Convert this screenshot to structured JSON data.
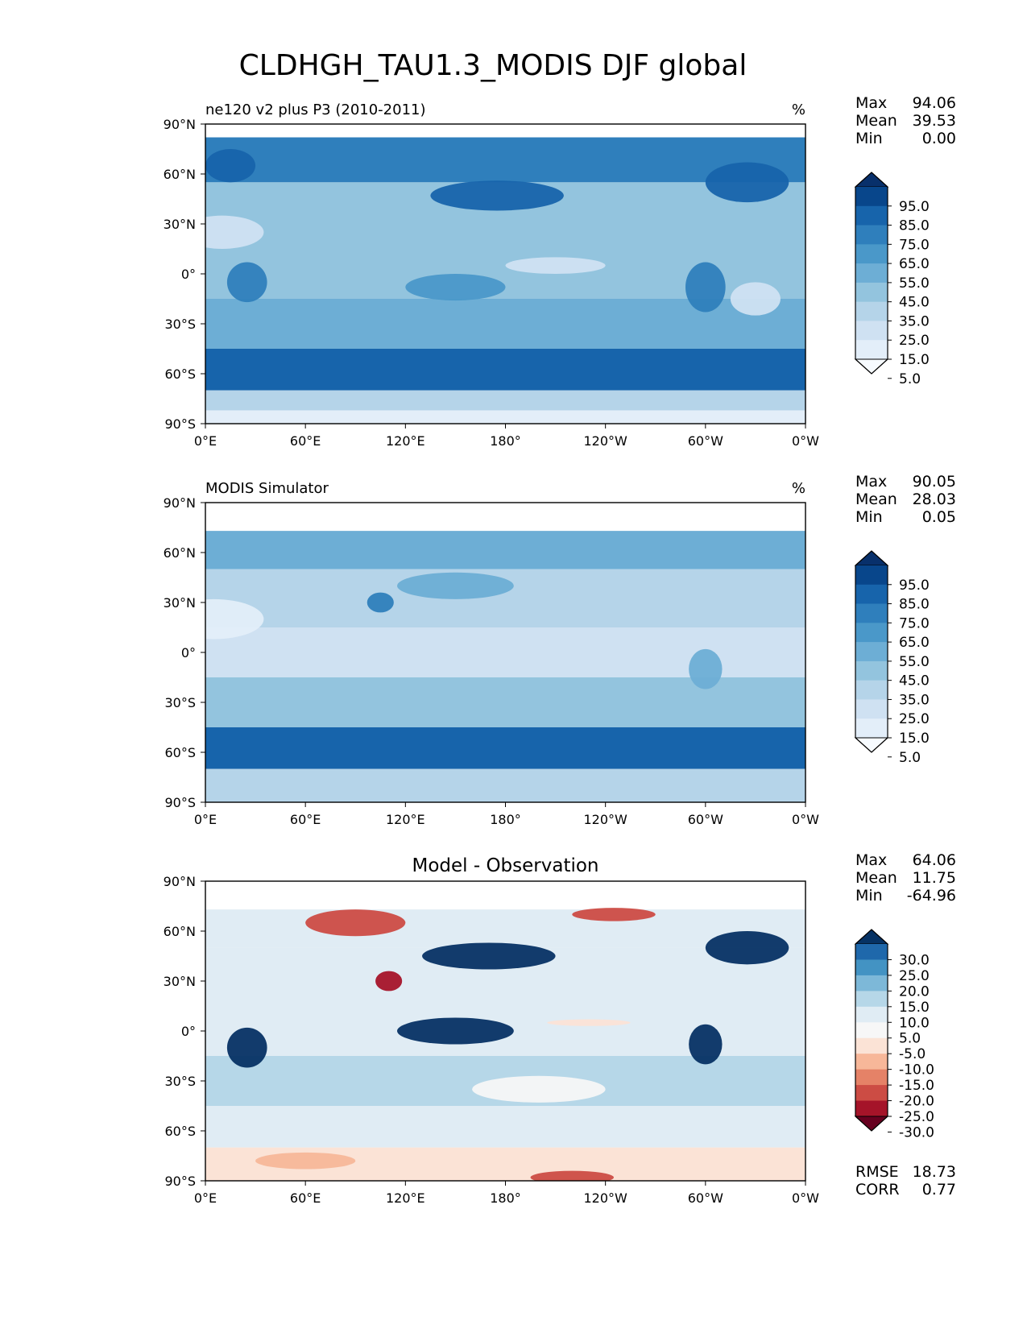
{
  "figure_title": "CLDHGH_TAU1.3_MODIS DJF global",
  "colors": {
    "seq": [
      "#f7fbff",
      "#e3eef9",
      "#cfe1f2",
      "#b5d4e9",
      "#93c4de",
      "#6daed5",
      "#4a98c9",
      "#2f7fbc",
      "#1764ab",
      "#08468b",
      "#08306b"
    ],
    "diff": [
      "#67001f",
      "#a51429",
      "#cc4c44",
      "#e58267",
      "#f7b799",
      "#fbe3d6",
      "#f7f7f7",
      "#e0ecf4",
      "#b6d7e8",
      "#7db8d8",
      "#4393c3",
      "#1f68ab",
      "#063264"
    ]
  },
  "chart_data": [
    {
      "type": "heatmap",
      "title": "ne120 v2 plus P3 (2010-2011)",
      "units": "%",
      "stats": [
        {
          "label": "Max",
          "value": "94.06"
        },
        {
          "label": "Mean",
          "value": "39.53"
        },
        {
          "label": "Min",
          "value": "0.00"
        }
      ],
      "xticks": [
        "0°E",
        "60°E",
        "120°E",
        "180°",
        "120°W",
        "60°W",
        "0°W"
      ],
      "yticks": [
        "90°N",
        "60°N",
        "30°N",
        "0°",
        "30°S",
        "60°S",
        "90°S"
      ],
      "xlim": [
        0,
        360
      ],
      "ylim": [
        -90,
        90
      ],
      "colorbar_levels": [
        "95.0",
        "85.0",
        "75.0",
        "65.0",
        "55.0",
        "45.0",
        "35.0",
        "25.0",
        "15.0",
        "5.0"
      ],
      "colorbar_extend": "both",
      "field": {
        "lat_max": 82,
        "background": 0,
        "bands": [
          {
            "lat": [
              55,
              82
            ],
            "value": 60
          },
          {
            "lat": [
              15,
              55
            ],
            "value": 35
          },
          {
            "lat": [
              -15,
              15
            ],
            "value": 30
          },
          {
            "lat": [
              -45,
              -15
            ],
            "value": 42
          },
          {
            "lat": [
              -70,
              -45
            ],
            "value": 78
          },
          {
            "lat": [
              -82,
              -70
            ],
            "value": 20
          }
        ],
        "blobs": [
          {
            "lon": 175,
            "lat": 47,
            "rx": 40,
            "ry": 9,
            "value": 72
          },
          {
            "lon": 325,
            "lat": 55,
            "rx": 25,
            "ry": 12,
            "value": 75
          },
          {
            "lon": 15,
            "lat": 65,
            "rx": 15,
            "ry": 10,
            "value": 70
          },
          {
            "lon": 25,
            "lat": -5,
            "rx": 12,
            "ry": 12,
            "value": 62
          },
          {
            "lon": 300,
            "lat": -8,
            "rx": 12,
            "ry": 15,
            "value": 68
          },
          {
            "lon": 150,
            "lat": -8,
            "rx": 30,
            "ry": 8,
            "value": 58
          },
          {
            "lon": 10,
            "lat": 25,
            "rx": 25,
            "ry": 10,
            "value": 15
          },
          {
            "lon": 210,
            "lat": 5,
            "rx": 30,
            "ry": 5,
            "value": 15
          },
          {
            "lon": 330,
            "lat": -15,
            "rx": 15,
            "ry": 10,
            "value": 18
          }
        ]
      }
    },
    {
      "type": "heatmap",
      "title": "MODIS Simulator",
      "units": "%",
      "stats": [
        {
          "label": "Max",
          "value": "90.05"
        },
        {
          "label": "Mean",
          "value": "28.03"
        },
        {
          "label": "Min",
          "value": "0.05"
        }
      ],
      "xticks": [
        "0°E",
        "60°E",
        "120°E",
        "180°",
        "120°W",
        "60°W",
        "0°W"
      ],
      "yticks": [
        "90°N",
        "60°N",
        "30°N",
        "0°",
        "30°S",
        "60°S",
        "90°S"
      ],
      "xlim": [
        0,
        360
      ],
      "ylim": [
        -90,
        90
      ],
      "colorbar_levels": [
        "95.0",
        "85.0",
        "75.0",
        "65.0",
        "55.0",
        "45.0",
        "35.0",
        "25.0",
        "15.0",
        "5.0"
      ],
      "colorbar_extend": "both",
      "field": {
        "lat_max": 73,
        "background": 0,
        "bands": [
          {
            "lat": [
              50,
              73
            ],
            "value": 42
          },
          {
            "lat": [
              15,
              50
            ],
            "value": 25
          },
          {
            "lat": [
              -15,
              15
            ],
            "value": 18
          },
          {
            "lat": [
              -45,
              -15
            ],
            "value": 30
          },
          {
            "lat": [
              -70,
              -45
            ],
            "value": 70
          },
          {
            "lat": [
              -90,
              -70
            ],
            "value": 20
          }
        ],
        "blobs": [
          {
            "lon": 105,
            "lat": 30,
            "rx": 8,
            "ry": 6,
            "value": 65
          },
          {
            "lon": 150,
            "lat": 40,
            "rx": 35,
            "ry": 8,
            "value": 40
          },
          {
            "lon": 5,
            "lat": 20,
            "rx": 30,
            "ry": 12,
            "value": 8
          },
          {
            "lon": 300,
            "lat": -10,
            "rx": 10,
            "ry": 12,
            "value": 40
          }
        ]
      }
    },
    {
      "type": "heatmap",
      "title": "Model - Observation",
      "units": "",
      "stats": [
        {
          "label": "Max",
          "value": "64.06"
        },
        {
          "label": "Mean",
          "value": "11.75"
        },
        {
          "label": "Min",
          "value": "-64.96"
        }
      ],
      "extra_stats": [
        {
          "label": "RMSE",
          "value": "18.73"
        },
        {
          "label": "CORR",
          "value": "0.77"
        }
      ],
      "xticks": [
        "0°E",
        "60°E",
        "120°E",
        "180°",
        "120°W",
        "60°W",
        "0°W"
      ],
      "yticks": [
        "90°N",
        "60°N",
        "30°N",
        "0°",
        "30°S",
        "60°S",
        "90°S"
      ],
      "xlim": [
        0,
        360
      ],
      "ylim": [
        -90,
        90
      ],
      "colorbar_levels": [
        "30.0",
        "25.0",
        "20.0",
        "15.0",
        "10.0",
        "5.0",
        "-5.0",
        "-10.0",
        "-15.0",
        "-20.0",
        "-25.0",
        "-30.0"
      ],
      "colorbar_extend": "both",
      "field": {
        "lat_max": 73,
        "background": 0,
        "bands": [
          {
            "lat": [
              50,
              73
            ],
            "value": 8
          },
          {
            "lat": [
              15,
              50
            ],
            "value": 5
          },
          {
            "lat": [
              -15,
              15
            ],
            "value": 8
          },
          {
            "lat": [
              -45,
              -15
            ],
            "value": 10
          },
          {
            "lat": [
              -70,
              -45
            ],
            "value": 8
          },
          {
            "lat": [
              -90,
              -70
            ],
            "value": -8
          }
        ],
        "blobs": [
          {
            "lon": 170,
            "lat": 45,
            "rx": 40,
            "ry": 8,
            "value": 32
          },
          {
            "lon": 325,
            "lat": 50,
            "rx": 25,
            "ry": 10,
            "value": 32
          },
          {
            "lon": 25,
            "lat": -10,
            "rx": 12,
            "ry": 12,
            "value": 35
          },
          {
            "lon": 300,
            "lat": -8,
            "rx": 10,
            "ry": 12,
            "value": 35
          },
          {
            "lon": 150,
            "lat": 0,
            "rx": 35,
            "ry": 8,
            "value": 30
          },
          {
            "lon": 90,
            "lat": 65,
            "rx": 30,
            "ry": 8,
            "value": -22
          },
          {
            "lon": 245,
            "lat": 70,
            "rx": 25,
            "ry": 4,
            "value": -25
          },
          {
            "lon": 110,
            "lat": 30,
            "rx": 8,
            "ry": 6,
            "value": -28
          },
          {
            "lon": 230,
            "lat": 5,
            "rx": 25,
            "ry": 2,
            "value": -8
          },
          {
            "lon": 220,
            "lat": -88,
            "rx": 25,
            "ry": 4,
            "value": -25
          },
          {
            "lon": 60,
            "lat": -78,
            "rx": 30,
            "ry": 5,
            "value": -12
          },
          {
            "lon": 200,
            "lat": -35,
            "rx": 40,
            "ry": 8,
            "value": 0
          }
        ]
      }
    }
  ]
}
